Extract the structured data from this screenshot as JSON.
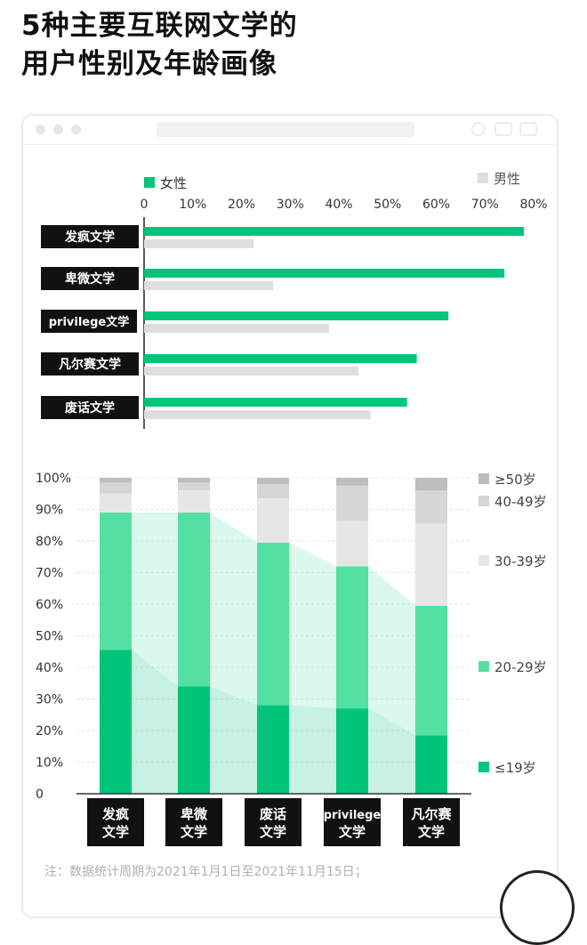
{
  "title": [
    "5种主要互联网文学的",
    "用户性别及年龄画像"
  ],
  "footnote": "注：数据统计周期为2021年1月1日至2021年11月15日；",
  "colors": {
    "female": "#00c57a",
    "male": "#dedede",
    "age_le19": "#00c57a",
    "age_20_29": "#55e0a3",
    "age_30_39": "#e6e6e6",
    "age_40_49": "#d6d6d6",
    "age_ge50": "#bdbdbd",
    "label_bg": "#111111"
  },
  "chart_data": [
    {
      "type": "bar",
      "orientation": "horizontal",
      "categories": [
        "发疯文学",
        "卑微文学",
        "privilege文学",
        "凡尔赛文学",
        "废话文学"
      ],
      "series": [
        {
          "name": "女性",
          "values": [
            78,
            74,
            62.5,
            56,
            54
          ]
        },
        {
          "name": "男性",
          "values": [
            22.5,
            26.5,
            38,
            44,
            46.5
          ]
        }
      ],
      "xlim": [
        0,
        80
      ],
      "x_ticks": [
        "0",
        "10%",
        "20%",
        "30%",
        "40%",
        "50%",
        "60%",
        "70%",
        "80%"
      ],
      "x_tick_values": [
        0,
        10,
        20,
        30,
        40,
        50,
        60,
        70,
        80
      ],
      "legend": "top"
    },
    {
      "type": "bar",
      "stacked": true,
      "categories": [
        [
          "发疯",
          "文学"
        ],
        [
          "卑微",
          "文学"
        ],
        [
          "废话",
          "文学"
        ],
        [
          "privilege",
          "文学"
        ],
        [
          "凡尔赛",
          "文学"
        ]
      ],
      "series": [
        {
          "name": "≤19岁",
          "values": [
            45.5,
            34,
            28,
            27,
            18.5
          ]
        },
        {
          "name": "20-29岁",
          "values": [
            43.5,
            55,
            51.5,
            45,
            41
          ]
        },
        {
          "name": "30-39岁",
          "values": [
            6,
            7,
            14,
            14.5,
            26
          ]
        },
        {
          "name": "40-49岁",
          "values": [
            3.5,
            2.5,
            4.5,
            11,
            10.5
          ]
        },
        {
          "name": "≥50岁",
          "values": [
            1.5,
            1.5,
            2,
            2.5,
            4
          ]
        }
      ],
      "ylim": [
        0,
        100
      ],
      "y_ticks": [
        "0",
        "10%",
        "20%",
        "30%",
        "40%",
        "50%",
        "60%",
        "70%",
        "80%",
        "90%",
        "100%"
      ],
      "y_tick_values": [
        0,
        10,
        20,
        30,
        40,
        50,
        60,
        70,
        80,
        90,
        100
      ],
      "legend": "right"
    }
  ]
}
